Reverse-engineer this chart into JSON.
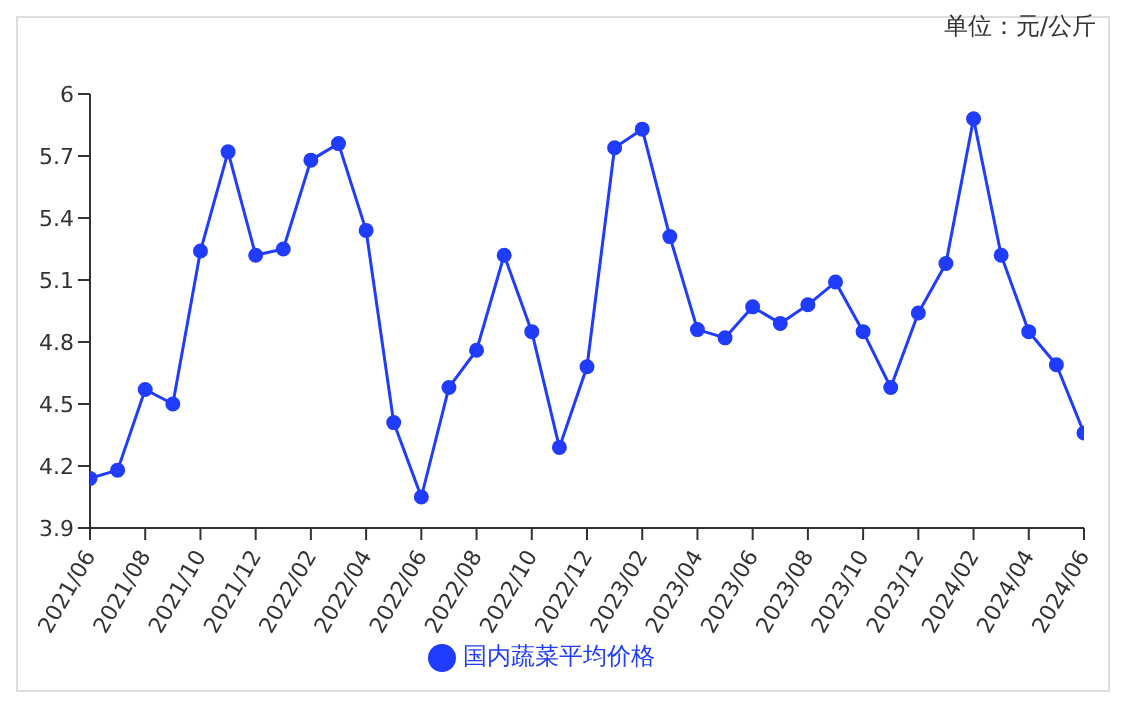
{
  "chart_data": {
    "type": "line",
    "annotations": [
      "单位：元/公斤"
    ],
    "categories": [
      "2021/06",
      null,
      "2021/08",
      null,
      "2021/10",
      null,
      "2021/12",
      null,
      "2022/02",
      null,
      "2022/04",
      null,
      "2022/06",
      null,
      "2022/08",
      null,
      "2022/10",
      null,
      "2022/12",
      null,
      "2023/02",
      null,
      "2023/04",
      null,
      "2023/06",
      null,
      "2023/08",
      null,
      "2023/10",
      null,
      "2023/12",
      null,
      "2024/02",
      null,
      "2024/04",
      null,
      "2024/06"
    ],
    "series": [
      {
        "name": "国内蔬菜平均价格",
        "color": "#1f3cff",
        "values": [
          4.14,
          4.18,
          4.57,
          4.5,
          5.24,
          5.72,
          5.22,
          5.25,
          5.68,
          5.76,
          5.34,
          4.41,
          4.05,
          4.58,
          4.76,
          5.22,
          4.85,
          4.29,
          4.68,
          5.74,
          5.83,
          5.31,
          4.86,
          4.82,
          4.97,
          4.89,
          4.98,
          5.09,
          4.85,
          4.58,
          4.94,
          5.18,
          5.88,
          5.22,
          4.85,
          4.69,
          4.36
        ]
      }
    ],
    "ylim": [
      3.9,
      6
    ],
    "yticks": [
      3.9,
      4.2,
      4.5,
      4.8,
      5.1,
      5.4,
      5.7,
      6
    ],
    "grid": false,
    "legend": "bottom",
    "marker": "circle",
    "line_style": "solid"
  }
}
